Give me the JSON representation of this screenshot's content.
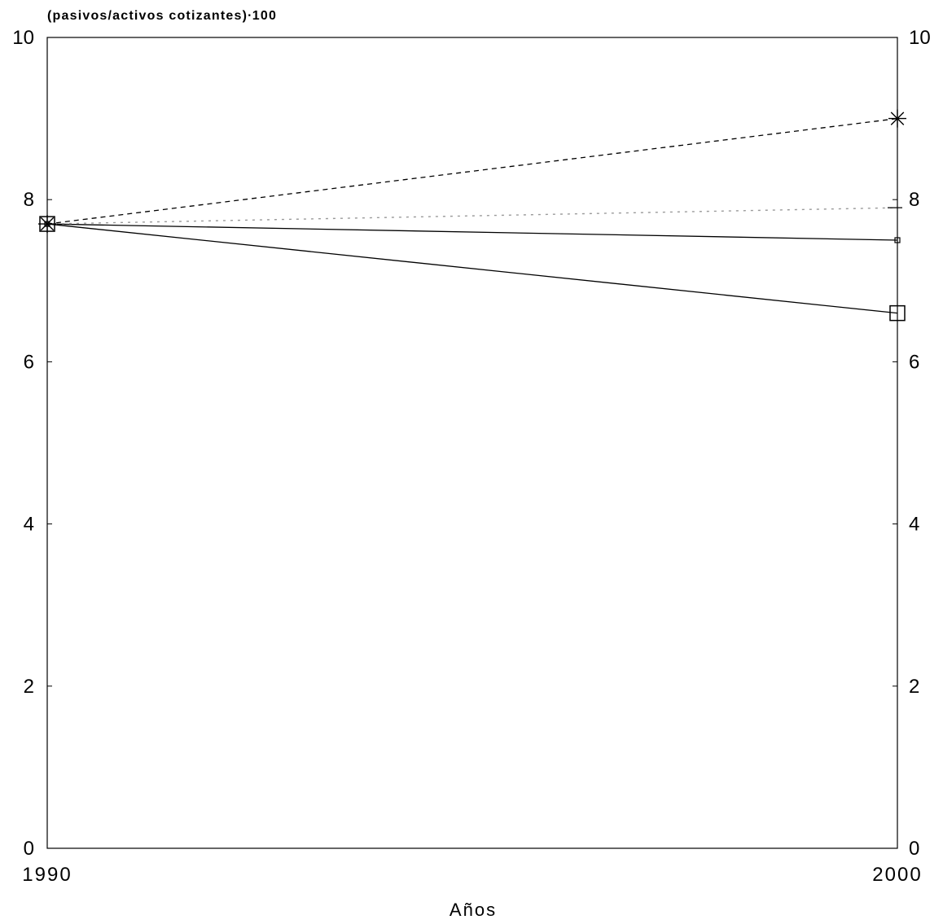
{
  "chart_data": {
    "type": "line",
    "title": "",
    "ylabel": "(pasivos/activos cotizantes)∙100",
    "xlabel": "Años",
    "x": [
      1990,
      2000
    ],
    "xlim": [
      1990,
      2000
    ],
    "ylim": [
      0,
      10
    ],
    "yticks": [
      0,
      2,
      4,
      6,
      8,
      10
    ],
    "right_axis_ticks": [
      0,
      2,
      4,
      6,
      8,
      10
    ],
    "grid": false,
    "series": [
      {
        "values": [
          7.7,
          9.0
        ],
        "line_style": "dashed",
        "marker": "asterisk",
        "color": "#000000"
      },
      {
        "values": [
          7.7,
          7.5
        ],
        "line_style": "solid",
        "marker": "small-square",
        "color": "#000000"
      },
      {
        "values": [
          7.7,
          6.6
        ],
        "line_style": "solid",
        "marker": "square",
        "color": "#000000"
      },
      {
        "values": [
          7.7,
          7.9
        ],
        "line_style": "dotted",
        "marker": "dash",
        "color": "#9a9a9a"
      }
    ]
  }
}
